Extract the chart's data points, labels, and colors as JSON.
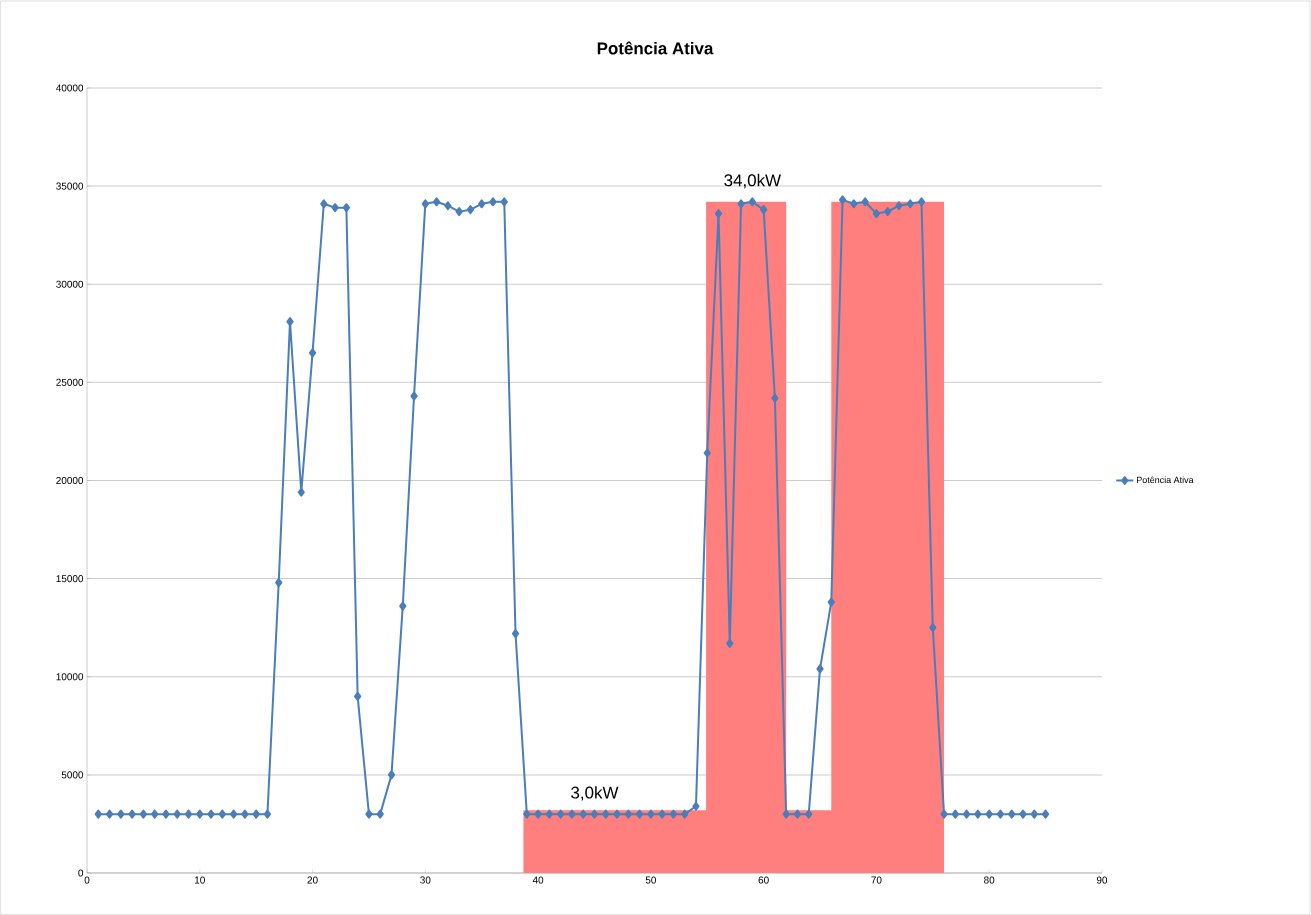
{
  "chart_data": {
    "type": "line",
    "title": "Potência Ativa",
    "x": [
      1,
      2,
      3,
      4,
      5,
      6,
      7,
      8,
      9,
      10,
      11,
      12,
      13,
      14,
      15,
      16,
      17,
      18,
      19,
      20,
      21,
      22,
      23,
      24,
      25,
      26,
      27,
      28,
      29,
      30,
      31,
      32,
      33,
      34,
      35,
      36,
      37,
      38,
      39,
      40,
      41,
      42,
      43,
      44,
      45,
      46,
      47,
      48,
      49,
      50,
      51,
      52,
      53,
      54,
      55,
      56,
      57,
      58,
      59,
      60,
      61,
      62,
      63,
      64,
      65,
      66,
      67,
      68,
      69,
      70,
      71,
      72,
      73,
      74,
      75,
      76,
      77,
      78,
      79,
      80,
      81,
      82,
      83,
      84,
      85
    ],
    "series": [
      {
        "type": "area",
        "color": "#ff7f7f",
        "x": [
          38.7,
          38.7,
          54.9,
          54.9,
          62,
          62,
          66,
          66,
          76,
          76
        ],
        "values": [
          0,
          3200,
          3200,
          34200,
          34200,
          3200,
          3200,
          34200,
          34200,
          0
        ]
      },
      {
        "name": "Potência Ativa",
        "color": "#4a7ebb",
        "marker": "diamond",
        "values": [
          3000,
          3000,
          3000,
          3000,
          3000,
          3000,
          3000,
          3000,
          3000,
          3000,
          3000,
          3000,
          3000,
          3000,
          3000,
          3000,
          14800,
          28100,
          19400,
          26500,
          34100,
          33900,
          33900,
          9000,
          3000,
          3000,
          5000,
          13600,
          24300,
          34100,
          34200,
          34000,
          33700,
          33800,
          34100,
          34200,
          34200,
          12200,
          3000,
          3000,
          3000,
          3000,
          3000,
          3000,
          3000,
          3000,
          3000,
          3000,
          3000,
          3000,
          3000,
          3000,
          3000,
          3400,
          21400,
          33600,
          11700,
          34100,
          34200,
          33800,
          24200,
          3000,
          3000,
          3000,
          10400,
          13800,
          34300,
          34100,
          34200,
          33600,
          33700,
          34000,
          34100,
          34200,
          12500,
          3000,
          3000,
          3000,
          3000,
          3000,
          3000,
          3000,
          3000,
          3000,
          3000
        ]
      }
    ],
    "xlim": [
      0,
      90
    ],
    "xticks": [
      0,
      10,
      20,
      30,
      40,
      50,
      60,
      70,
      80,
      90
    ],
    "ylim": [
      0,
      40000
    ],
    "yticks": [
      0,
      5000,
      10000,
      15000,
      20000,
      25000,
      30000,
      35000,
      40000
    ],
    "grid": "y",
    "legend": "right",
    "annotations": [
      {
        "text": "34,0kW",
        "x": 59,
        "y": 34200
      },
      {
        "text": "3,0kW",
        "x": 45,
        "y": 3000
      }
    ]
  }
}
